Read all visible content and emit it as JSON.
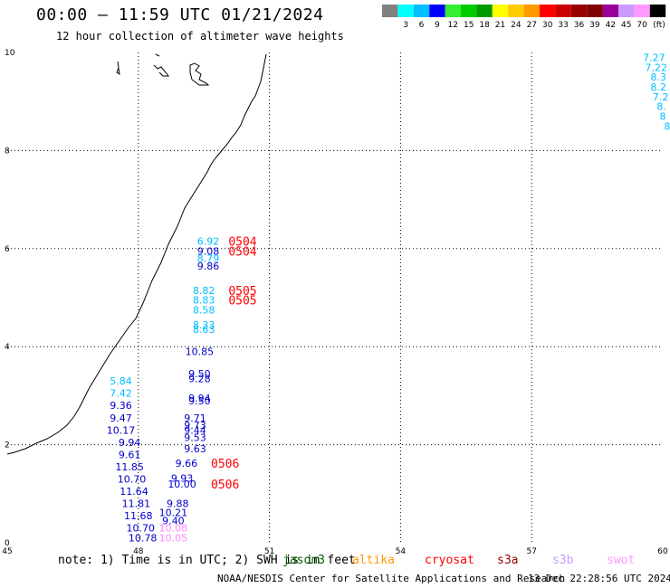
{
  "title": "00:00 – 11:59 UTC 01/21/2024",
  "subtitle": "12 hour collection of altimeter wave heights",
  "colorbar": {
    "unit": "(ft)",
    "ticks": [
      "3",
      "6",
      "9",
      "12",
      "15",
      "18",
      "21",
      "24",
      "27",
      "30",
      "33",
      "36",
      "39",
      "42",
      "45",
      "70"
    ],
    "colors": [
      "#808080",
      "#00ffff",
      "#00bfff",
      "#0000ff",
      "#33ee33",
      "#00cc00",
      "#009900",
      "#ffff00",
      "#ffcc00",
      "#ff9900",
      "#ff0000",
      "#cc0000",
      "#990000",
      "#800000",
      "#990099",
      "#cc99ff",
      "#ff99ff",
      "#000000"
    ]
  },
  "axes": {
    "x_ticks": [
      "45",
      "48",
      "51",
      "54",
      "57",
      "60"
    ],
    "y_ticks": [
      "0",
      "2",
      "4",
      "6",
      "8",
      "10"
    ],
    "x_range": [
      45,
      60
    ],
    "y_range": [
      0,
      10
    ]
  },
  "observations": [
    {
      "v": "7.27",
      "x": 59.8,
      "y": 9.9,
      "c": "#00bfff"
    },
    {
      "v": "7.22",
      "x": 59.85,
      "y": 9.7,
      "c": "#00bfff"
    },
    {
      "v": "8.3",
      "x": 59.9,
      "y": 9.5,
      "c": "#00bfff"
    },
    {
      "v": "8.2",
      "x": 59.9,
      "y": 9.3,
      "c": "#00bfff"
    },
    {
      "v": "7.2",
      "x": 59.95,
      "y": 9.1,
      "c": "#00bfff"
    },
    {
      "v": "8.",
      "x": 59.97,
      "y": 8.9,
      "c": "#00bfff"
    },
    {
      "v": "8",
      "x": 60.0,
      "y": 8.7,
      "c": "#00bfff"
    },
    {
      "v": "8",
      "x": 60.1,
      "y": 8.5,
      "c": "#00bfff"
    },
    {
      "v": "6.92",
      "x": 49.6,
      "y": 6.15,
      "c": "#00bfff"
    },
    {
      "v": "9.08",
      "x": 49.6,
      "y": 5.95,
      "c": "#0000cc"
    },
    {
      "v": "8.79",
      "x": 49.6,
      "y": 5.8,
      "c": "#00bfff"
    },
    {
      "v": "9.86",
      "x": 49.6,
      "y": 5.65,
      "c": "#0000cc"
    },
    {
      "v": "8.82",
      "x": 49.5,
      "y": 5.15,
      "c": "#00bfff"
    },
    {
      "v": "8.83",
      "x": 49.5,
      "y": 4.95,
      "c": "#00bfff"
    },
    {
      "v": "8.58",
      "x": 49.5,
      "y": 4.75,
      "c": "#00bfff"
    },
    {
      "v": "8.33",
      "x": 49.5,
      "y": 4.45,
      "c": "#00bfff"
    },
    {
      "v": "8.63",
      "x": 49.5,
      "y": 4.35,
      "c": "#00bfff"
    },
    {
      "v": "10.85",
      "x": 49.4,
      "y": 3.9,
      "c": "#0000cc"
    },
    {
      "v": "9.50",
      "x": 49.4,
      "y": 3.45,
      "c": "#0000cc"
    },
    {
      "v": "9.28",
      "x": 49.4,
      "y": 3.35,
      "c": "#0000cc"
    },
    {
      "v": "9.94",
      "x": 49.4,
      "y": 2.95,
      "c": "#0000cc"
    },
    {
      "v": "9.50",
      "x": 49.4,
      "y": 2.9,
      "c": "#0000cc"
    },
    {
      "v": "9.71",
      "x": 49.3,
      "y": 2.55,
      "c": "#0000cc"
    },
    {
      "v": "9.73",
      "x": 49.3,
      "y": 2.4,
      "c": "#0000cc"
    },
    {
      "v": "9.44",
      "x": 49.3,
      "y": 2.3,
      "c": "#0000cc"
    },
    {
      "v": "9.53",
      "x": 49.3,
      "y": 2.15,
      "c": "#0000cc"
    },
    {
      "v": "9.63",
      "x": 49.3,
      "y": 1.92,
      "c": "#0000cc"
    },
    {
      "v": "9.66",
      "x": 49.1,
      "y": 1.62,
      "c": "#0000cc"
    },
    {
      "v": "9.93",
      "x": 49.0,
      "y": 1.32,
      "c": "#0000cc"
    },
    {
      "v": "10.00",
      "x": 49.0,
      "y": 1.2,
      "c": "#0000cc"
    },
    {
      "v": "9.88",
      "x": 48.9,
      "y": 0.8,
      "c": "#0000cc"
    },
    {
      "v": "10.21",
      "x": 48.8,
      "y": 0.62,
      "c": "#0000cc"
    },
    {
      "v": "9.40",
      "x": 48.8,
      "y": 0.45,
      "c": "#0000cc"
    },
    {
      "v": "10.08",
      "x": 48.8,
      "y": 0.3,
      "c": "#ff88ff"
    },
    {
      "v": "10.05",
      "x": 48.8,
      "y": 0.1,
      "c": "#ff88ff"
    },
    {
      "v": "5.84",
      "x": 47.6,
      "y": 3.3,
      "c": "#00bfff"
    },
    {
      "v": "7.42",
      "x": 47.6,
      "y": 3.05,
      "c": "#00bfff"
    },
    {
      "v": "9.36",
      "x": 47.6,
      "y": 2.8,
      "c": "#0000cc"
    },
    {
      "v": "9.47",
      "x": 47.6,
      "y": 2.55,
      "c": "#0000cc"
    },
    {
      "v": "10.17",
      "x": 47.6,
      "y": 2.3,
      "c": "#0000cc"
    },
    {
      "v": "9.94",
      "x": 47.8,
      "y": 2.05,
      "c": "#0000cc"
    },
    {
      "v": "9.61",
      "x": 47.8,
      "y": 1.8,
      "c": "#0000cc"
    },
    {
      "v": "11.85",
      "x": 47.8,
      "y": 1.55,
      "c": "#0000cc"
    },
    {
      "v": "10.70",
      "x": 47.85,
      "y": 1.3,
      "c": "#0000cc"
    },
    {
      "v": "11.64",
      "x": 47.9,
      "y": 1.05,
      "c": "#0000cc"
    },
    {
      "v": "11.81",
      "x": 47.95,
      "y": 0.8,
      "c": "#0000cc"
    },
    {
      "v": "11.68",
      "x": 48.0,
      "y": 0.55,
      "c": "#0000cc"
    },
    {
      "v": "10.70",
      "x": 48.05,
      "y": 0.3,
      "c": "#0000cc"
    },
    {
      "v": "10.78",
      "x": 48.1,
      "y": 0.1,
      "c": "#0000cc"
    }
  ],
  "time_labels": [
    {
      "v": "0504",
      "x": 50.0,
      "y": 6.15,
      "c": "#ff0000"
    },
    {
      "v": "0504",
      "x": 50.0,
      "y": 5.95,
      "c": "#ff0000"
    },
    {
      "v": "0505",
      "x": 50.0,
      "y": 5.15,
      "c": "#ff0000"
    },
    {
      "v": "0505",
      "x": 50.0,
      "y": 4.95,
      "c": "#ff0000"
    },
    {
      "v": "0506",
      "x": 49.6,
      "y": 1.62,
      "c": "#ff0000"
    },
    {
      "v": "0506",
      "x": 49.6,
      "y": 1.2,
      "c": "#ff0000"
    }
  ],
  "note": "note: 1) Time is in UTC; 2) SWH is in feet",
  "satellites": [
    {
      "name": "jason3",
      "color": "#006600"
    },
    {
      "name": "altika",
      "color": "#ff9900"
    },
    {
      "name": "cryosat",
      "color": "#ff0000"
    },
    {
      "name": "s3a",
      "color": "#990000"
    },
    {
      "name": "s3b",
      "color": "#cc99ff"
    },
    {
      "name": "swot",
      "color": "#ff99ff"
    }
  ],
  "footer": "NOAA/NESDIS Center for Satellite Applications and Research",
  "footer_time": "13 Dec 22:28:56 UTC 2024"
}
